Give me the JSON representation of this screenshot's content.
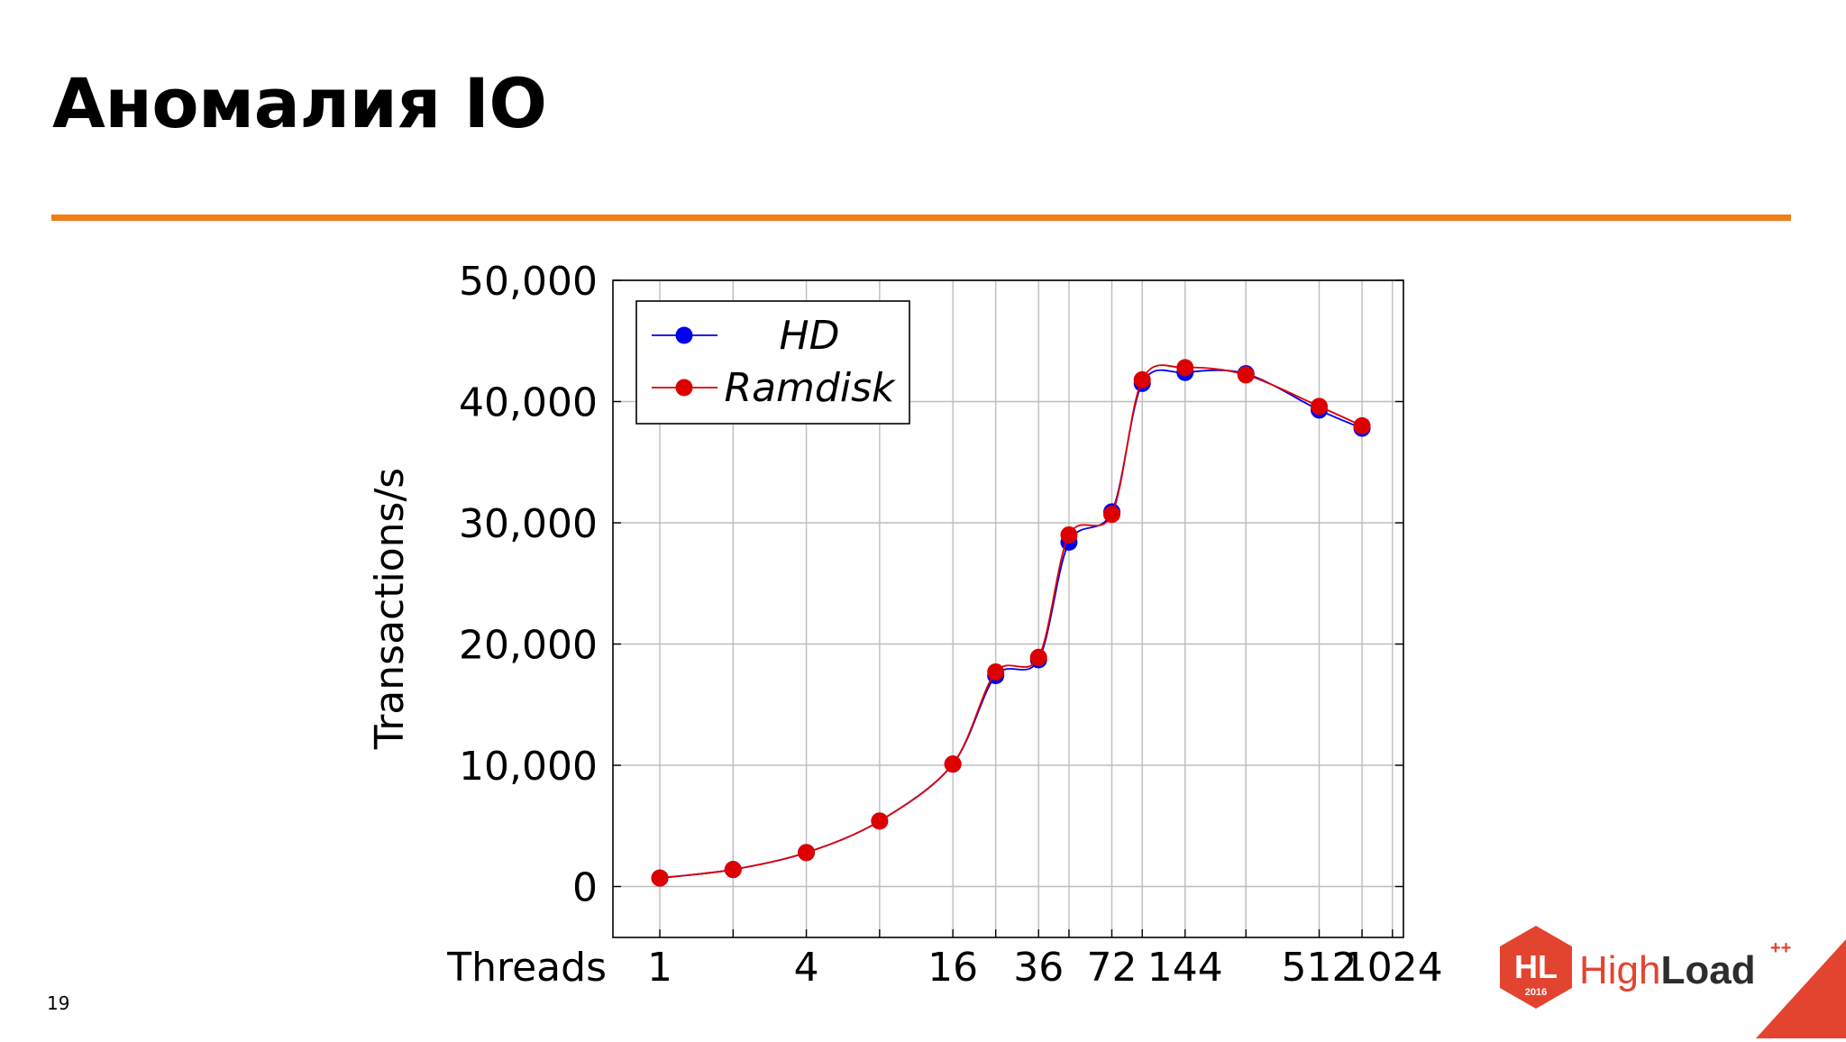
{
  "slide": {
    "title": "Аномалия IO",
    "page_number": "19",
    "accent_color": "#f07d17"
  },
  "logo": {
    "badge_text": "HL",
    "badge_year": "2016",
    "word_left": "High",
    "word_right": "Load",
    "superscript": "++",
    "badge_color": "#e3442f",
    "text_color": "#2d2d2d"
  },
  "chart_data": {
    "type": "line",
    "title": "",
    "xlabel": "Threads",
    "ylabel": "Transactions/s",
    "x_scale": "log2",
    "x_ticks": [
      1,
      4,
      16,
      36,
      72,
      144,
      512,
      1024
    ],
    "x_tick_labels": [
      "1",
      "4",
      "16",
      "36",
      "72",
      "144",
      "512",
      "1024"
    ],
    "x_grid_categories": [
      1,
      2,
      4,
      8,
      16,
      24,
      36,
      48,
      72,
      96,
      144,
      256,
      512,
      768,
      1024
    ],
    "y_ticks": [
      0,
      10000,
      20000,
      30000,
      40000,
      50000
    ],
    "y_tick_labels": [
      "0",
      "10,000",
      "20,000",
      "30,000",
      "40,000",
      "50,000"
    ],
    "ylim": [
      -4200,
      50000
    ],
    "grid": true,
    "legend_position": "top-left",
    "series": [
      {
        "name": "HD",
        "color": "#0000ee",
        "x": [
          1,
          2,
          4,
          8,
          16,
          24,
          36,
          48,
          72,
          96,
          144,
          256,
          512,
          768
        ],
        "values": [
          700,
          1400,
          2800,
          5400,
          10100,
          17400,
          18700,
          28400,
          30900,
          41500,
          42400,
          42300,
          39300,
          37800
        ]
      },
      {
        "name": "Ramdisk",
        "color": "#dd0000",
        "x": [
          1,
          2,
          4,
          8,
          16,
          24,
          36,
          48,
          72,
          96,
          144,
          256,
          512,
          768
        ],
        "values": [
          700,
          1400,
          2800,
          5400,
          10100,
          17700,
          18900,
          29000,
          30700,
          41800,
          42800,
          42200,
          39600,
          38000
        ]
      }
    ]
  }
}
